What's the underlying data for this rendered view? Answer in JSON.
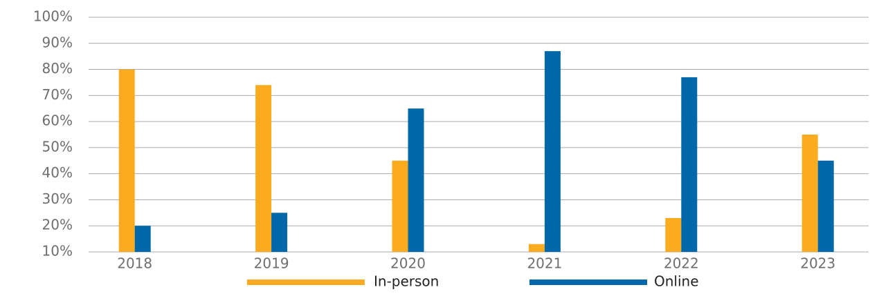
{
  "chart_data": {
    "type": "bar",
    "categories": [
      "2018",
      "2019",
      "2020",
      "2021",
      "2022",
      "2023"
    ],
    "series": [
      {
        "name": "In-person",
        "color": "#fbab1f",
        "values": [
          80,
          74,
          45,
          13,
          23,
          55
        ]
      },
      {
        "name": "Online",
        "color": "#0068a8",
        "values": [
          20,
          25,
          65,
          87,
          77,
          45
        ]
      }
    ],
    "ylim": [
      10,
      100
    ],
    "yticks": [
      {
        "value": 10,
        "label": "10%"
      },
      {
        "value": 20,
        "label": "20%"
      },
      {
        "value": 30,
        "label": "30%"
      },
      {
        "value": 40,
        "label": "40%"
      },
      {
        "value": 50,
        "label": "50%"
      },
      {
        "value": 60,
        "label": "60%"
      },
      {
        "value": 70,
        "label": "70%"
      },
      {
        "value": 80,
        "label": "80%"
      },
      {
        "value": 90,
        "label": "90%"
      },
      {
        "value": 100,
        "label": "100%"
      }
    ],
    "grid": true,
    "legend": "bottom"
  }
}
